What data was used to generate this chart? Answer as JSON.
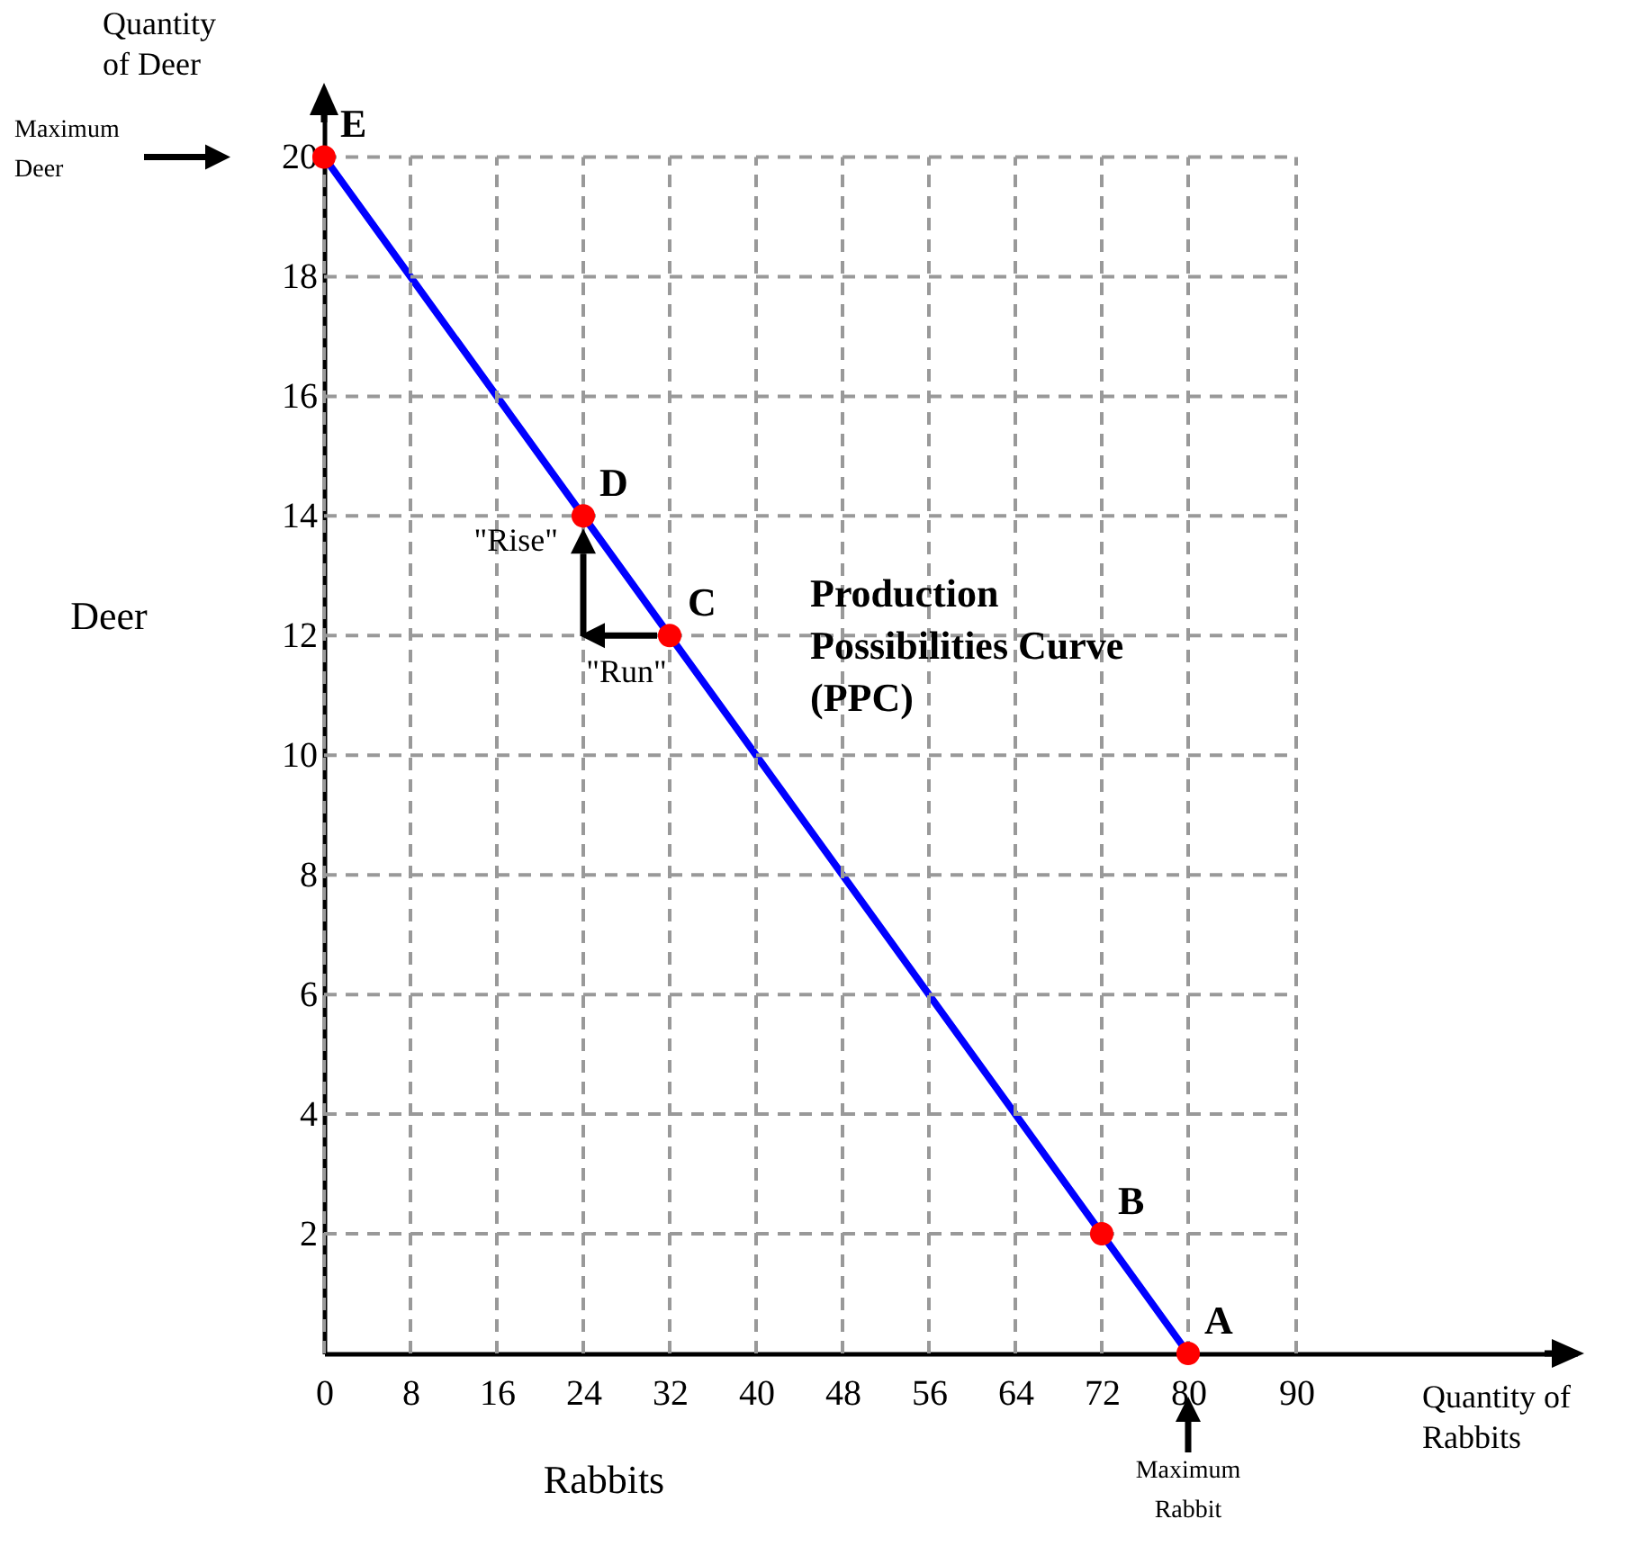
{
  "chart_data": {
    "type": "line",
    "xlabel": "Rabbits",
    "ylabel": "Deer",
    "x": [
      0,
      24,
      32,
      72,
      80
    ],
    "series": [
      {
        "name": "Production Possibilities Curve (PPC)",
        "color": "#0000ff",
        "colors": [
          "#ff0000",
          "#ff0000",
          "#ff0000",
          "#ff0000",
          "#ff0000"
        ],
        "values": [
          20,
          14,
          12,
          2,
          0
        ]
      }
    ],
    "xlim": [
      0,
      116
    ],
    "ylim": [
      0,
      21
    ],
    "xticks": [
      0,
      8,
      16,
      24,
      32,
      40,
      48,
      56,
      64,
      72,
      80,
      90
    ],
    "yticks": [
      2,
      4,
      6,
      8,
      10,
      12,
      14,
      16,
      18,
      20
    ],
    "grid": true,
    "marker": "circle",
    "line_style": "solid",
    "annotations": [
      "Quantity of Deer",
      "Quantity of Rabbits",
      {
        "text": "E",
        "x": 0,
        "y": 20
      },
      {
        "text": "D",
        "x": 24,
        "y": 14
      },
      {
        "text": "C",
        "x": 32,
        "y": 12
      },
      {
        "text": "B",
        "x": 72,
        "y": 2
      },
      {
        "text": "A",
        "x": 80,
        "y": 0
      },
      "Maximum Deer",
      "Maximum Rabbit",
      "\"Rise\"",
      "\"Run\""
    ]
  }
}
